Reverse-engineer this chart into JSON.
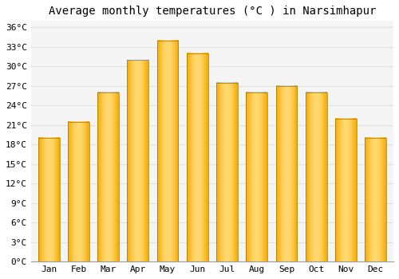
{
  "title": "Average monthly temperatures (°C ) in Narsimhapur",
  "months": [
    "Jan",
    "Feb",
    "Mar",
    "Apr",
    "May",
    "Jun",
    "Jul",
    "Aug",
    "Sep",
    "Oct",
    "Nov",
    "Dec"
  ],
  "temperatures": [
    19.0,
    21.5,
    26.0,
    31.0,
    34.0,
    32.0,
    27.5,
    26.0,
    27.0,
    26.0,
    22.0,
    19.0
  ],
  "bar_color_center": "#FFD86E",
  "bar_color_edge": "#F5A800",
  "bar_border_color": "#A07800",
  "ylim": [
    0,
    37
  ],
  "yticks": [
    0,
    3,
    6,
    9,
    12,
    15,
    18,
    21,
    24,
    27,
    30,
    33,
    36
  ],
  "ytick_labels": [
    "0°C",
    "3°C",
    "6°C",
    "9°C",
    "12°C",
    "15°C",
    "18°C",
    "21°C",
    "24°C",
    "27°C",
    "30°C",
    "33°C",
    "36°C"
  ],
  "bg_color": "#FFFFFF",
  "plot_bg_color": "#F5F5F5",
  "grid_color": "#E0E0E0",
  "title_fontsize": 10,
  "tick_fontsize": 8,
  "font_family": "monospace"
}
